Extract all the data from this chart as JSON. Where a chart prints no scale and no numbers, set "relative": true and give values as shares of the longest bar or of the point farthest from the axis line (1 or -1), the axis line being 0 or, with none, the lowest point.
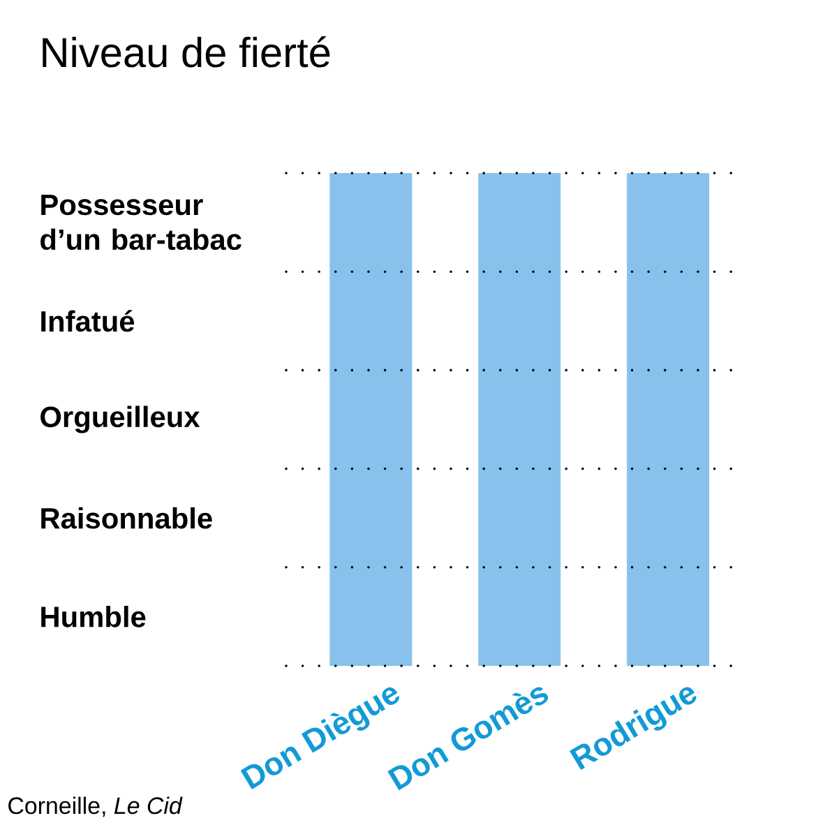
{
  "chart_data": {
    "type": "bar",
    "title": "Niveau de fierté",
    "categories": [
      "Don Diègue",
      "Don Gomès",
      "Rodrigue"
    ],
    "values": [
      1,
      1,
      1
    ],
    "relative": true,
    "color": "#88c2ec",
    "ref_lines": [
      {
        "axis": "y",
        "value": 0,
        "line_style": "dotted",
        "color": "#000000"
      },
      {
        "axis": "y",
        "value": 0.2,
        "line_style": "dotted",
        "color": "#000000"
      },
      {
        "axis": "y",
        "value": 0.4,
        "line_style": "dotted",
        "color": "#000000"
      },
      {
        "axis": "y",
        "value": 0.6,
        "line_style": "dotted",
        "color": "#000000"
      },
      {
        "axis": "y",
        "value": 0.8,
        "line_style": "dotted",
        "color": "#000000"
      },
      {
        "axis": "y",
        "value": 1,
        "line_style": "dotted",
        "color": "#000000"
      }
    ],
    "annotations": [
      "Possesseur d’un bar-tabac",
      "Infatué",
      "Orgueilleux",
      "Raisonnable",
      "Humble",
      "Corneille, *Le Cid*"
    ]
  }
}
